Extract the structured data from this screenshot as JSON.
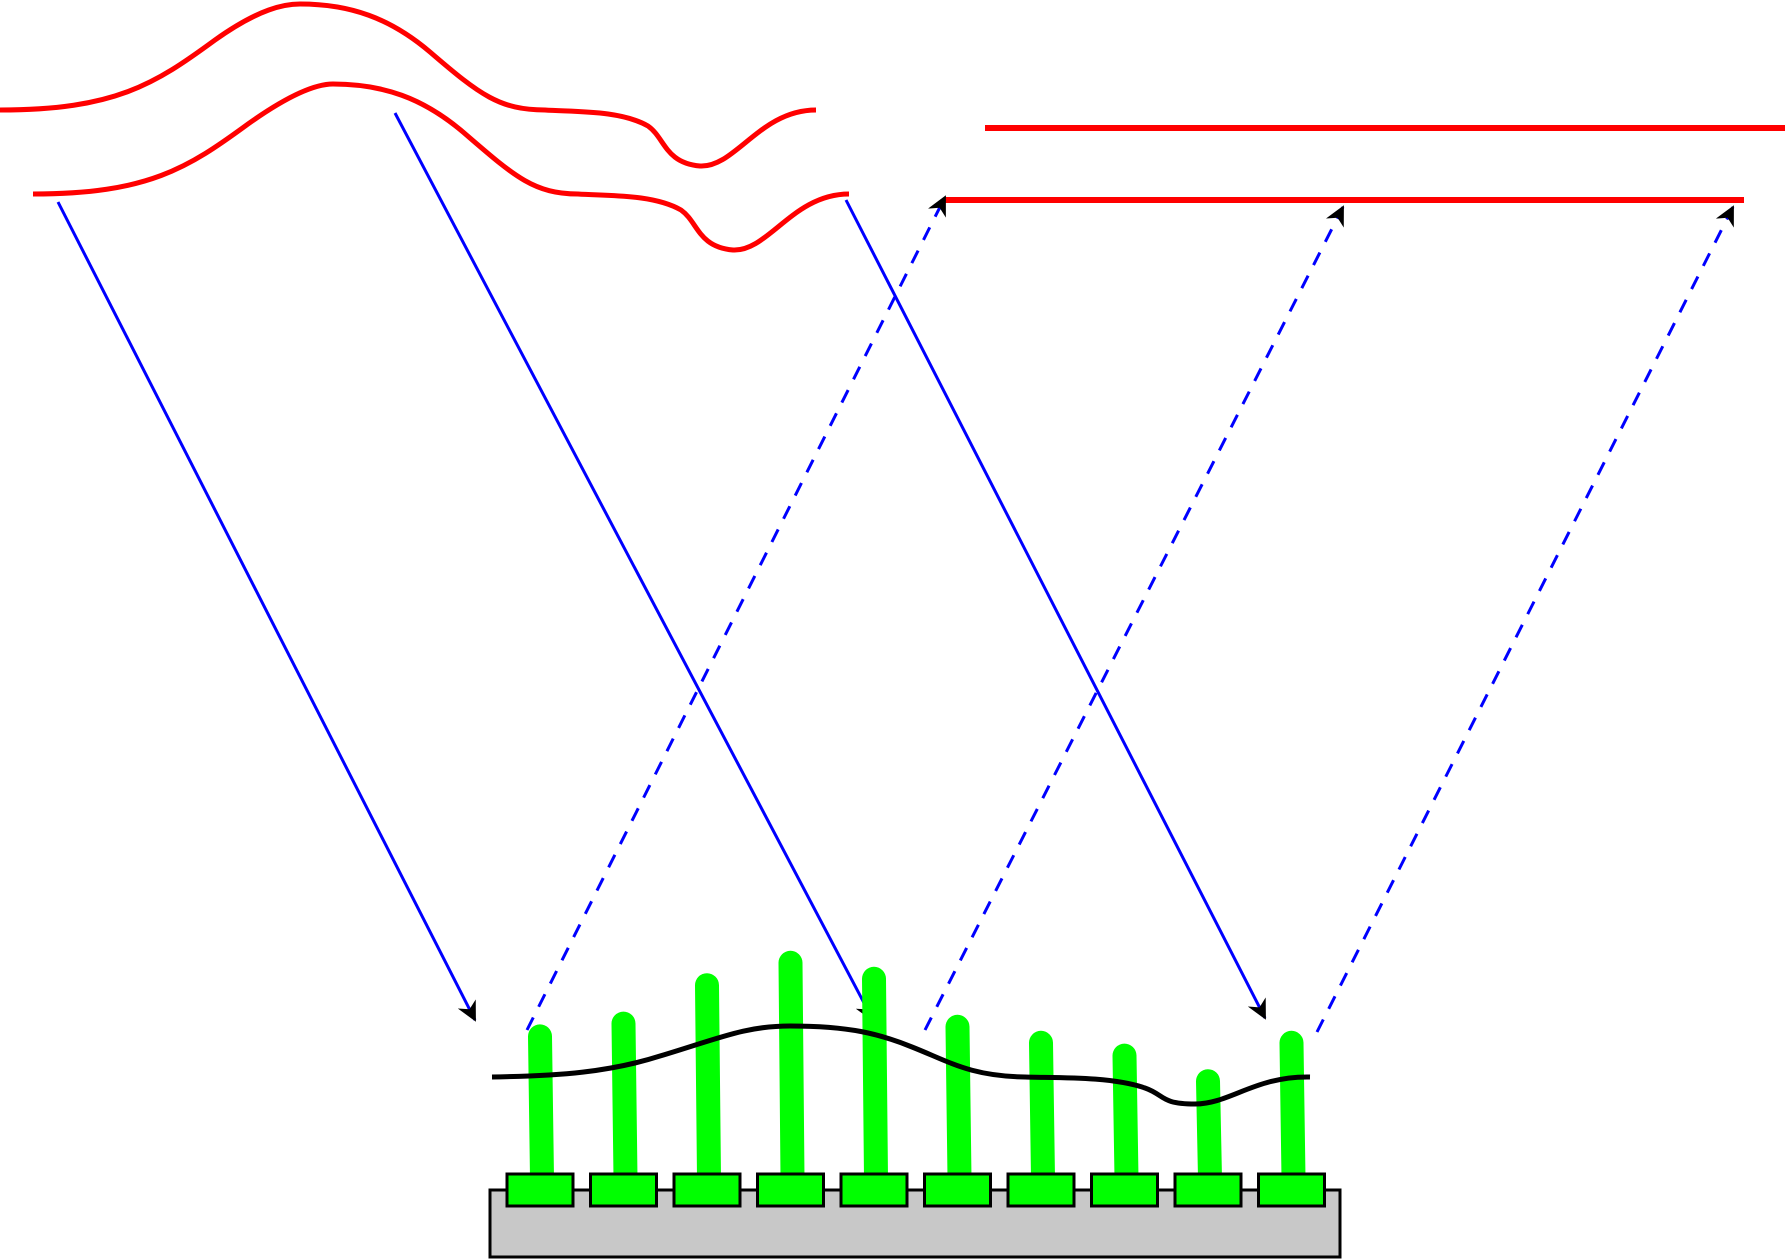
{
  "diagram": {
    "background": "#ffffff",
    "colors": {
      "wavefront": "#ff0000",
      "incident_ray": "#0000ff",
      "reflected_ray": "#0000ff",
      "arrowhead": "#000000",
      "mirror_surface": "#000000",
      "actuator": "#00ff00",
      "baseplate": "#c8c8c8",
      "outline": "#000000"
    },
    "components": {
      "incoming_wavefronts": 2,
      "outgoing_wavefronts": 2,
      "incident_rays": 3,
      "reflected_rays": 3,
      "actuators": 10
    },
    "actuator_heights": [
      0.43,
      0.47,
      0.59,
      0.66,
      0.61,
      0.46,
      0.41,
      0.37,
      0.29,
      0.41
    ]
  }
}
